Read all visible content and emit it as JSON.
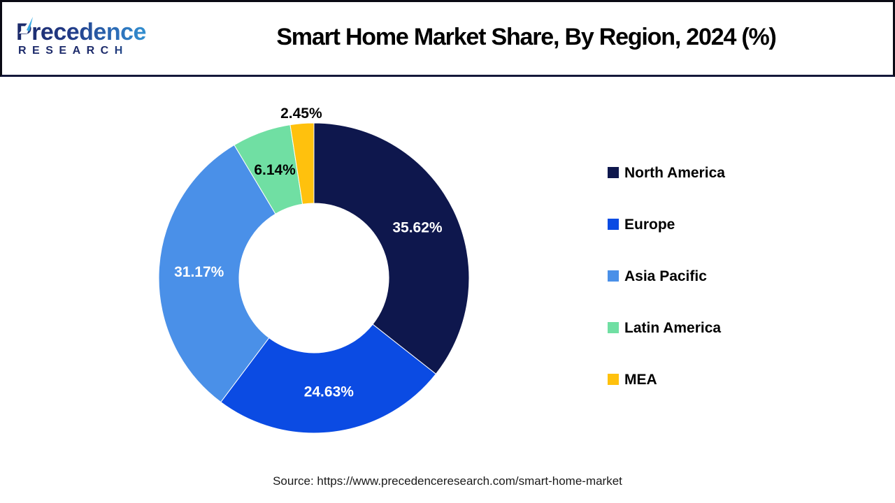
{
  "header": {
    "logo": {
      "line1": "Precedence",
      "line2": "RESEARCH"
    },
    "title": "Smart Home Market Share, By Region, 2024 (%)"
  },
  "chart_data": {
    "type": "pie",
    "subtype": "donut",
    "title": "Smart Home Market Share, By Region, 2024 (%)",
    "unit": "%",
    "categories": [
      "North America",
      "Europe",
      "Asia Pacific",
      "Latin America",
      "MEA"
    ],
    "values": [
      35.62,
      24.63,
      31.17,
      6.14,
      2.45
    ],
    "labels": [
      "35.62%",
      "24.63%",
      "31.17%",
      "6.14%",
      "2.45%"
    ],
    "colors": [
      "#0e174d",
      "#0b4be3",
      "#4a90e8",
      "#70dfa3",
      "#ffc10d"
    ],
    "start_angle_deg": 0,
    "direction": "clockwise",
    "inner_radius_ratio": 0.48,
    "legend_position": "right",
    "label_colors": {
      "inside_large": "#ffffff",
      "inside_small": "#000000",
      "outside": "#000000"
    }
  },
  "footer": {
    "source": "Source: https://www.precedenceresearch.com/smart-home-market"
  }
}
